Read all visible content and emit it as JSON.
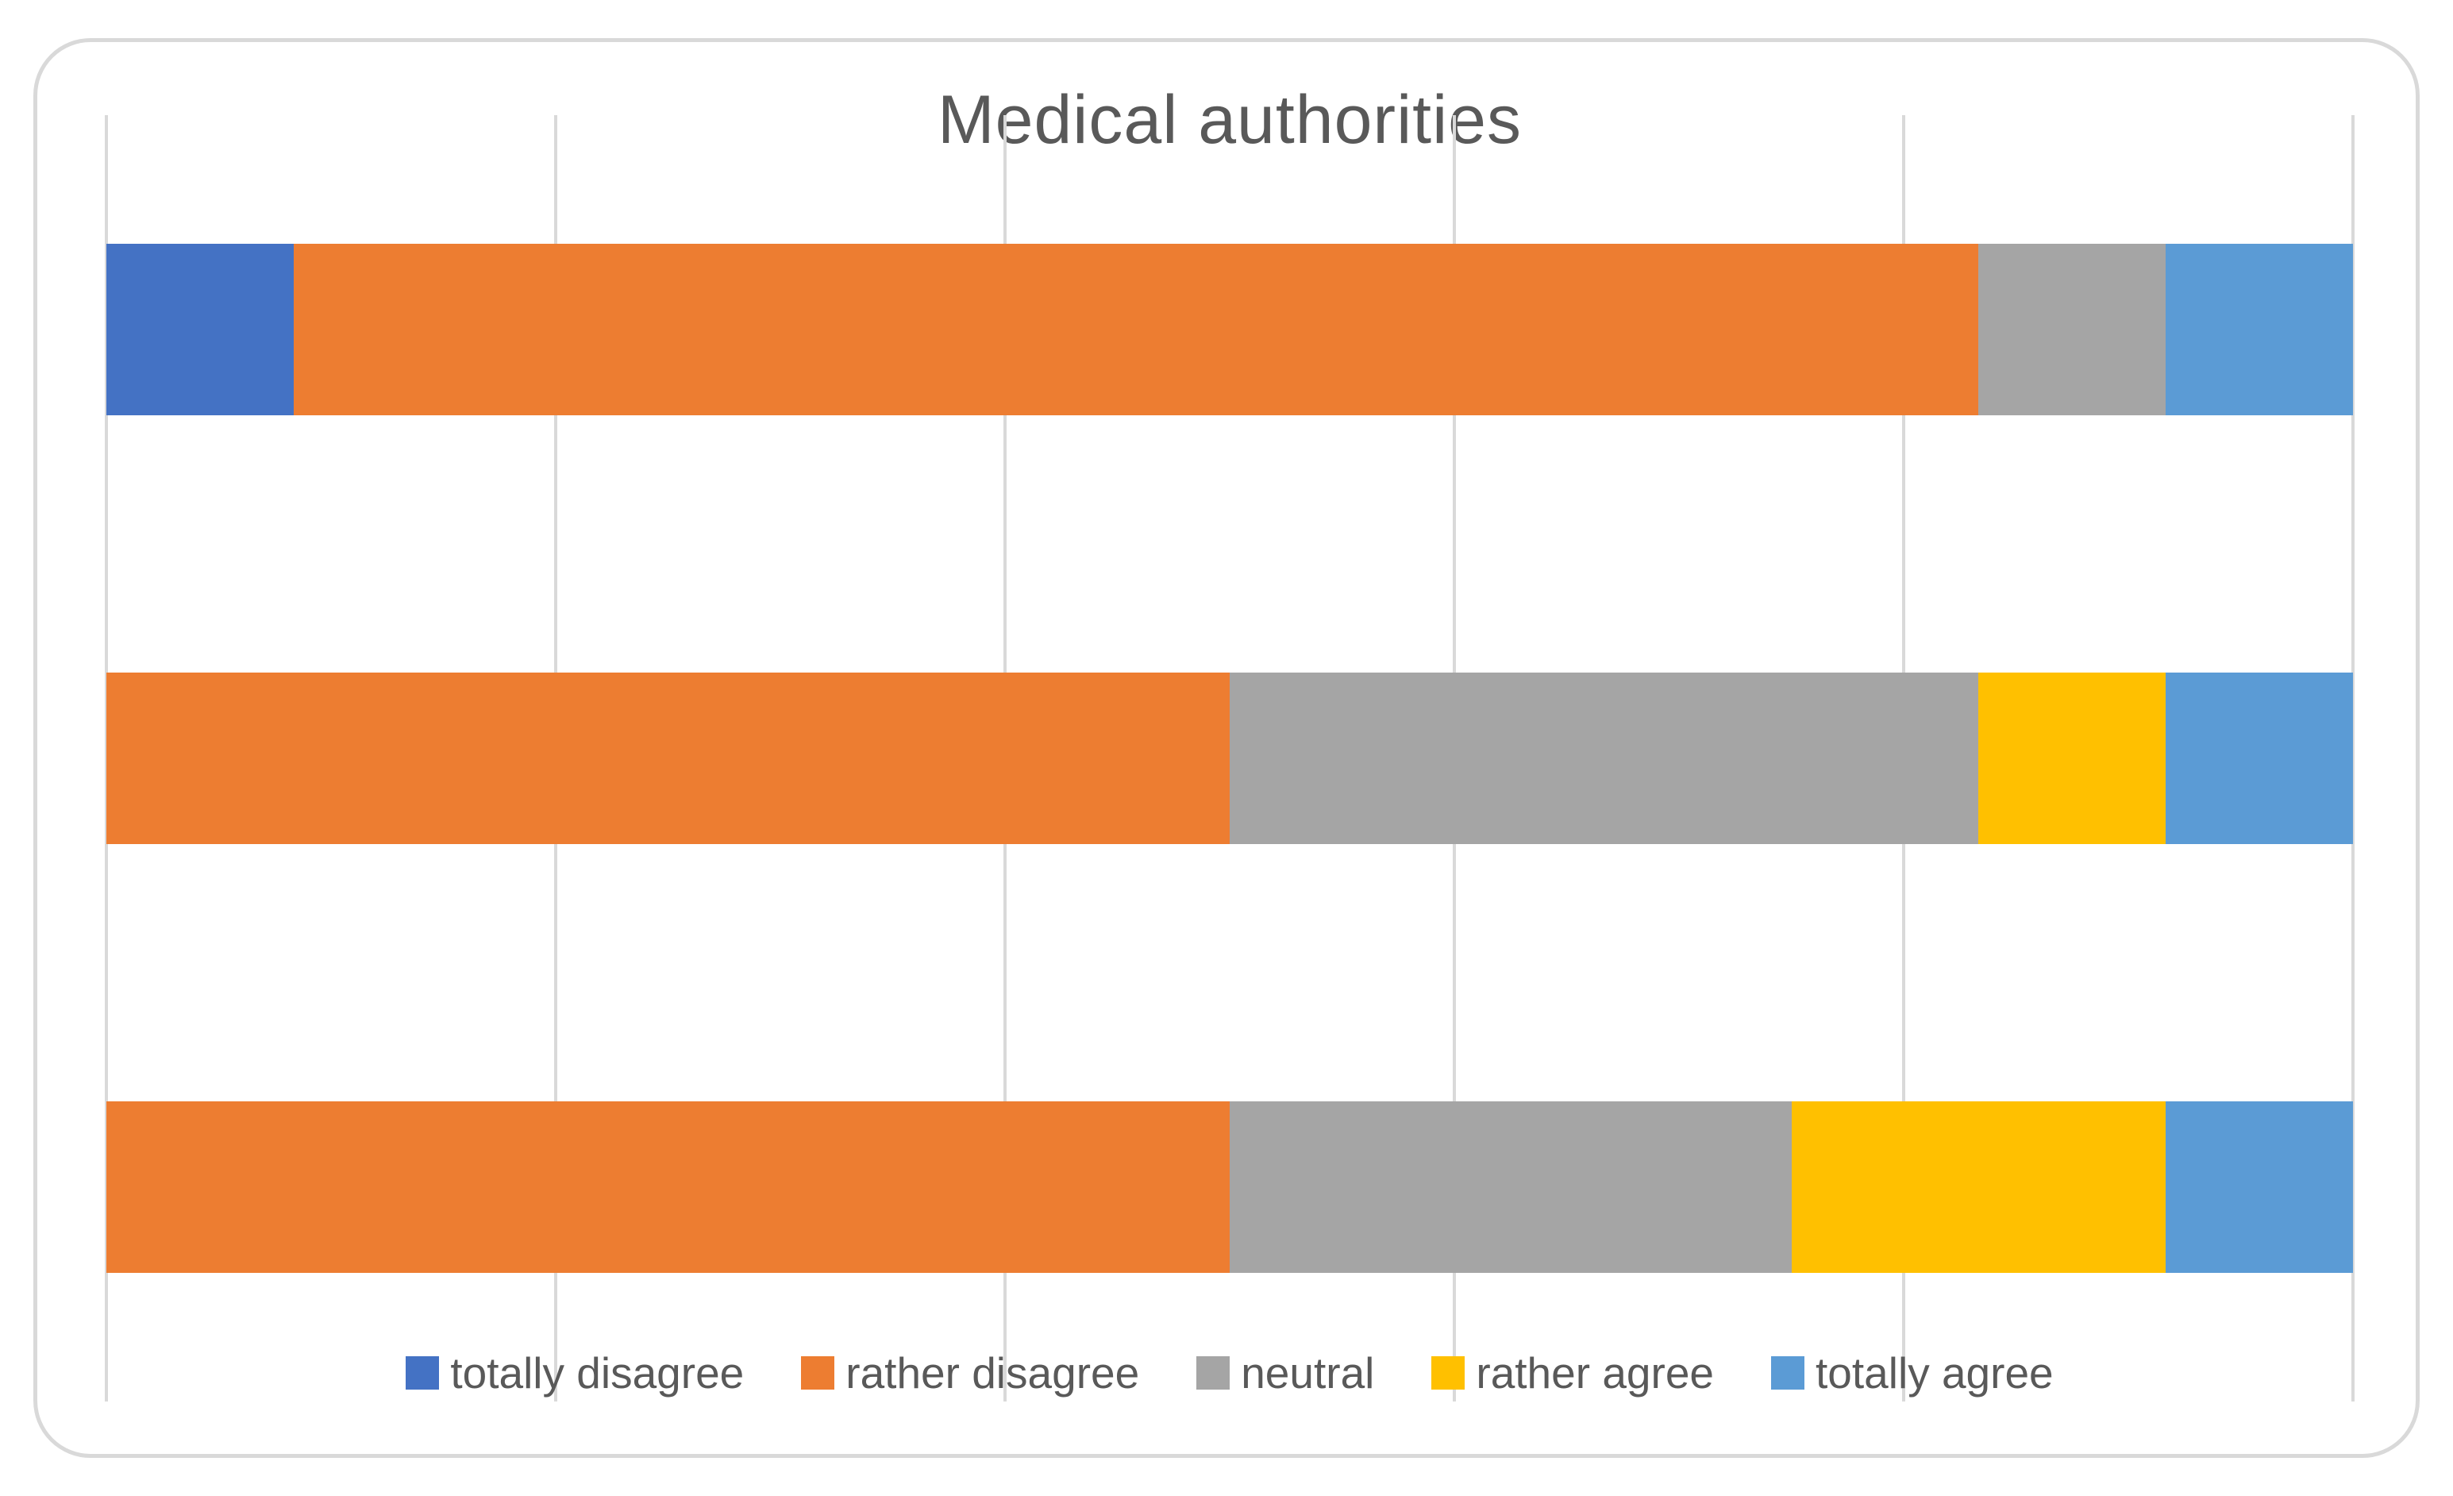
{
  "chart_data": {
    "type": "bar",
    "orientation": "horizontal-stacked",
    "title": "Medical authorities",
    "categories": [
      "",
      "",
      ""
    ],
    "series": [
      {
        "name": "totally disagree",
        "color": "#4472C4",
        "values": [
          8.33,
          0,
          0
        ]
      },
      {
        "name": "rather disagree",
        "color": "#ED7D31",
        "values": [
          75,
          50,
          50
        ]
      },
      {
        "name": "neutral",
        "color": "#A5A5A5",
        "values": [
          8.33,
          33.33,
          25
        ]
      },
      {
        "name": "rather agree",
        "color": "#FFC000",
        "values": [
          0,
          8.33,
          16.67
        ]
      },
      {
        "name": "totally agree",
        "color": "#5B9BD5",
        "values": [
          8.33,
          8.33,
          8.33
        ]
      }
    ],
    "xlim": [
      0,
      100
    ],
    "x_tick_labels_visible": false,
    "category_labels_visible": false,
    "gridlines_percent": [
      0,
      20,
      40,
      60,
      80,
      100
    ],
    "grid": "vertical",
    "legend_position": "bottom"
  },
  "colors": {
    "title_text": "#595959",
    "legend_text": "#595959",
    "gridline": "#D9D9D9",
    "card_border": "#D9D9D9",
    "background": "#FFFFFF"
  }
}
